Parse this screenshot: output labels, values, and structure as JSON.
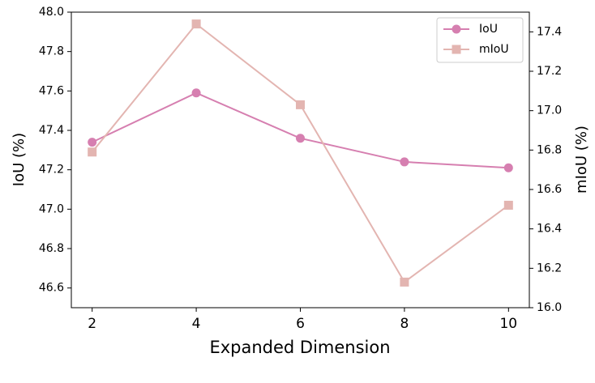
{
  "chart_data": {
    "type": "line",
    "xlabel": "Expanded Dimension",
    "ylabel": "IoU (%)",
    "y2label": "mIoU (%)",
    "x": [
      2,
      4,
      6,
      8,
      10
    ],
    "series": [
      {
        "name": "IoU",
        "color": "#d67fb0",
        "marker": "circle",
        "values": [
          47.34,
          47.59,
          47.36,
          47.24,
          47.21
        ]
      },
      {
        "name": "mIoU",
        "color": "#e3b5b1",
        "marker": "square",
        "axis": "y2",
        "values": [
          16.79,
          17.44,
          17.03,
          16.13,
          16.52
        ]
      }
    ],
    "xlim": [
      1.6,
      10.4
    ],
    "xticks": [
      2,
      4,
      6,
      8,
      10
    ],
    "ylim": [
      46.5,
      48.0
    ],
    "yticks": [
      46.6,
      46.8,
      {
        "value": 47.0,
        "label": "47.0"
      },
      47.2,
      47.4,
      47.6,
      47.8,
      {
        "value": 48.0,
        "label": "48.0"
      }
    ],
    "y2lim": [
      16.0,
      17.5
    ],
    "y2ticks": [
      {
        "value": 16.0,
        "label": "16.0"
      },
      16.2,
      16.4,
      16.6,
      16.8,
      {
        "value": 17.0,
        "label": "17.0"
      },
      17.2,
      17.4
    ],
    "legend": "upper right",
    "grid": false
  }
}
